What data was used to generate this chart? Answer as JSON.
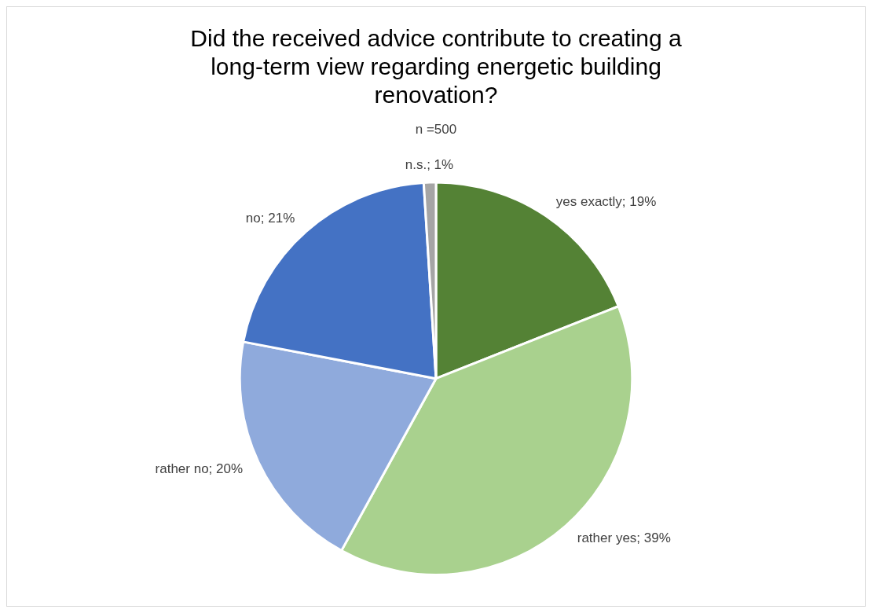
{
  "chart_data": {
    "type": "pie",
    "title": "Did the received advice contribute to creating a long-term view regarding energetic building renovation?",
    "subtitle": "n =500",
    "categories": [
      "yes exactly",
      "rather yes",
      "rather no",
      "no",
      "n.s."
    ],
    "values": [
      19,
      39,
      20,
      21,
      1
    ],
    "value_labels": [
      "19%",
      "39%",
      "20%",
      "21%",
      "1%"
    ],
    "colors": [
      "#548235",
      "#a9d18e",
      "#8faadc",
      "#4472c4",
      "#a5a5a5"
    ],
    "legend": false
  }
}
